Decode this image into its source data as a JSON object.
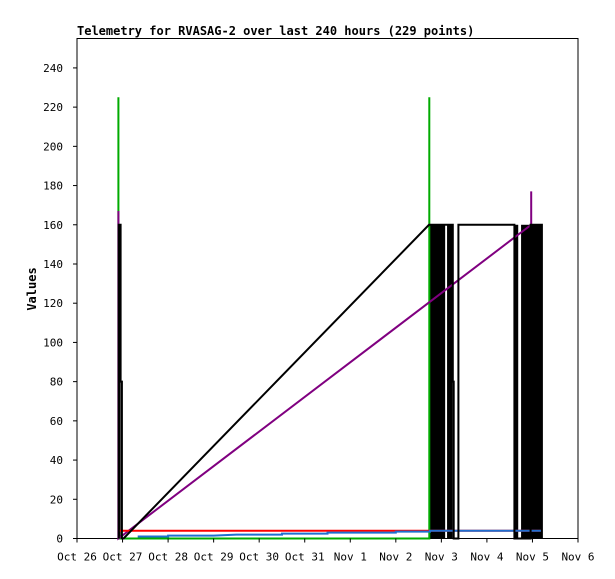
{
  "chart_data": {
    "type": "line",
    "title": "Telemetry for RVASAG-2 over last 240 hours (229 points)",
    "xlabel": "",
    "ylabel": "Values",
    "ylim": [
      0,
      255
    ],
    "yticks": [
      0,
      20,
      40,
      60,
      80,
      100,
      120,
      140,
      160,
      180,
      200,
      220,
      240
    ],
    "xlim": [
      "2023-10-26",
      "2023-11-06"
    ],
    "xticks": [
      "Oct 26",
      "Oct 27",
      "Oct 28",
      "Oct 29",
      "Oct 30",
      "Oct 31",
      "Nov 1",
      "Nov 2",
      "Nov 3",
      "Nov 4",
      "Nov 5",
      "Nov 6"
    ],
    "grid": false,
    "legend": "none",
    "series": [
      {
        "color": "#00aa00",
        "style": "spikes",
        "points": [
          [
            "2023-10-26 21:50",
            0
          ],
          [
            "2023-10-26 21:50",
            225
          ],
          [
            "2023-10-26 21:50",
            0
          ],
          [
            "2023-11-02 17:40",
            0
          ],
          [
            "2023-11-02 17:40",
            225
          ],
          [
            "2023-11-02 17:40",
            160
          ]
        ]
      },
      {
        "color": "#800080",
        "style": "spikes",
        "points": [
          [
            "2023-10-26 21:50",
            0
          ],
          [
            "2023-10-26 21:50",
            167
          ],
          [
            "2023-10-26 21:50",
            0
          ],
          [
            "2023-11-04 23:20",
            160
          ],
          [
            "2023-11-04 23:20",
            177
          ],
          [
            "2023-11-04 23:20",
            160
          ]
        ]
      },
      {
        "color": "#ff0000",
        "style": "line",
        "points": [
          [
            "2023-10-26 22:30",
            4
          ],
          [
            "2023-11-05 05:00",
            4
          ]
        ]
      },
      {
        "color": "#1f6fd0",
        "style": "step",
        "points": [
          [
            "2023-10-27 08:00",
            1
          ],
          [
            "2023-10-28 00:00",
            1
          ],
          [
            "2023-10-28 00:00",
            1.5
          ],
          [
            "2023-10-29 00:00",
            1.5
          ],
          [
            "2023-10-29 12:00",
            2
          ],
          [
            "2023-10-30 12:00",
            2
          ],
          [
            "2023-10-30 12:00",
            2.5
          ],
          [
            "2023-10-31 12:00",
            2.5
          ],
          [
            "2023-10-31 12:00",
            3
          ],
          [
            "2023-11-02 00:00",
            3
          ],
          [
            "2023-11-02 00:00",
            3.5
          ],
          [
            "2023-11-02 18:00",
            3.5
          ],
          [
            "2023-11-02 18:00",
            4
          ],
          [
            "2023-11-05 05:00",
            4
          ]
        ]
      },
      {
        "color": "#000000",
        "style": "line",
        "points": [
          [
            "2023-10-26 22:00",
            0
          ],
          [
            "2023-10-26 22:00",
            160
          ],
          [
            "2023-10-26 23:00",
            160
          ],
          [
            "2023-10-26 23:00",
            80
          ],
          [
            "2023-10-26 23:40",
            80
          ],
          [
            "2023-10-26 23:40",
            0
          ],
          [
            "2023-10-27 00:30",
            0
          ],
          [
            "2023-11-02 17:30",
            160
          ],
          [
            "2023-11-03 06:00",
            160
          ],
          [
            "2023-11-03 06:00",
            80
          ],
          [
            "2023-11-03 06:30",
            80
          ],
          [
            "2023-11-03 06:30",
            0
          ],
          [
            "2023-11-03 09:00",
            0
          ],
          [
            "2023-11-03 09:00",
            160
          ],
          [
            "2023-11-04 14:30",
            160
          ],
          [
            "2023-11-04 14:30",
            0
          ],
          [
            "2023-11-04 23:00",
            0
          ],
          [
            "2023-11-04 23:00",
            160
          ],
          [
            "2023-11-05 05:00",
            160
          ],
          [
            "2023-11-05 05:00",
            0
          ]
        ]
      }
    ],
    "dense_bands": [
      {
        "from": "2023-10-26 22:00",
        "to": "2023-10-26 23:00",
        "low": 0,
        "high": 160,
        "color": "#000000"
      },
      {
        "from": "2023-11-02 17:30",
        "to": "2023-11-03 02:00",
        "low": 0,
        "high": 160,
        "color": "#000000"
      },
      {
        "from": "2023-11-03 03:00",
        "to": "2023-11-03 06:00",
        "low": 0,
        "high": 160,
        "color": "#000000"
      },
      {
        "from": "2023-11-04 14:30",
        "to": "2023-11-04 16:30",
        "low": 0,
        "high": 160,
        "color": "#000000"
      },
      {
        "from": "2023-11-04 18:00",
        "to": "2023-11-05 05:00",
        "low": 0,
        "high": 160,
        "color": "#000000"
      }
    ]
  }
}
